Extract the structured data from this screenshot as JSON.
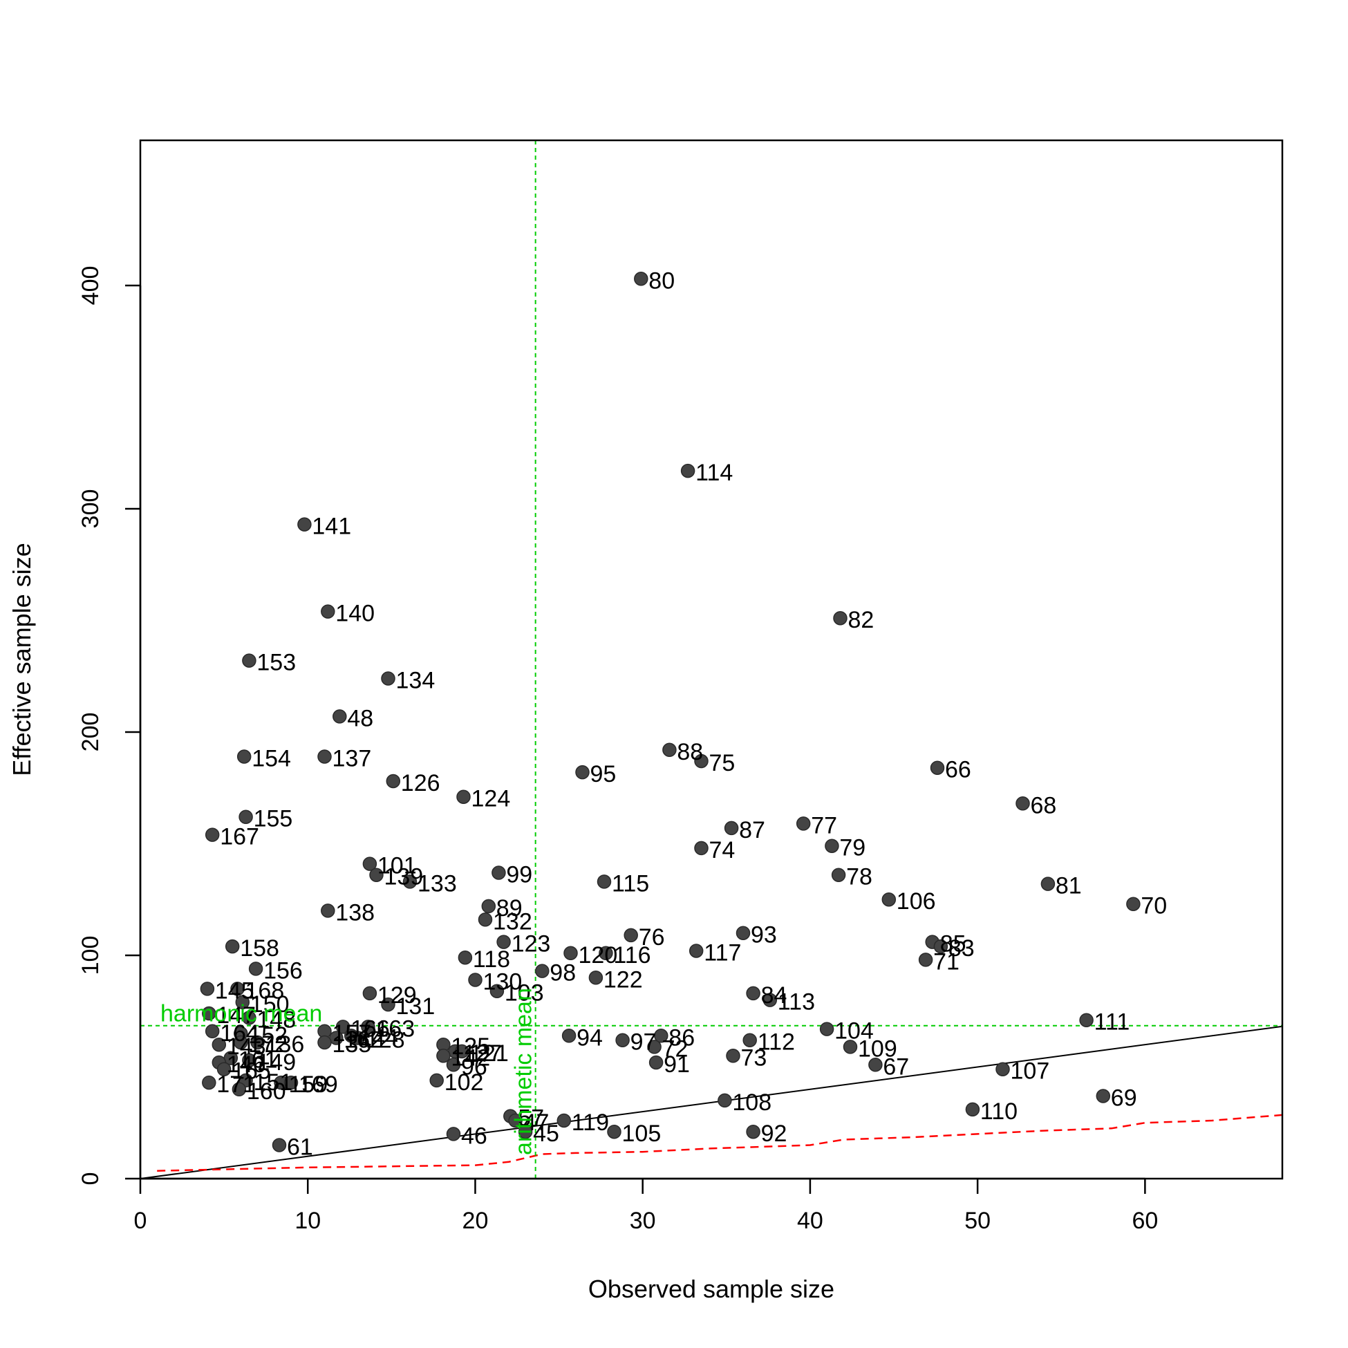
{
  "chart_data": {
    "type": "scatter",
    "xlabel": "Observed sample size",
    "ylabel": "Effective sample size",
    "xlim": [
      0,
      68.2
    ],
    "ylim": [
      0,
      465
    ],
    "x_ticks": [
      0,
      10,
      20,
      30,
      40,
      50,
      60
    ],
    "y_ticks": [
      0,
      100,
      200,
      300,
      400
    ],
    "grid": false,
    "colors": {
      "points": "#444444",
      "reference": "#00cc00",
      "identity": "#000000",
      "lower": "#ff0000"
    },
    "harmonic_mean": {
      "label": "harmonic mean",
      "y": 68.5
    },
    "arithmetic_mean": {
      "label": "arithmetic mean",
      "x": 23.6
    },
    "identity_line": {
      "x": [
        0,
        68.2
      ],
      "y": [
        0,
        68.2
      ]
    },
    "lower_bound_line": {
      "x": [
        1,
        10,
        20,
        22,
        24,
        26,
        30,
        34,
        38,
        40,
        42,
        46,
        50,
        54,
        58,
        60,
        64,
        68.2
      ],
      "y": [
        3.5,
        5,
        6,
        7.5,
        11,
        11.5,
        12,
        13.5,
        14.5,
        15,
        17.5,
        18.5,
        20,
        21.5,
        22.5,
        25,
        26,
        28.5
      ]
    },
    "points": [
      {
        "label": "80",
        "x": 29.9,
        "y": 403
      },
      {
        "label": "114",
        "x": 32.7,
        "y": 317
      },
      {
        "label": "141",
        "x": 9.8,
        "y": 293
      },
      {
        "label": "140",
        "x": 11.2,
        "y": 254
      },
      {
        "label": "82",
        "x": 41.8,
        "y": 251
      },
      {
        "label": "153",
        "x": 6.5,
        "y": 232
      },
      {
        "label": "134",
        "x": 14.8,
        "y": 224
      },
      {
        "label": "48",
        "x": 11.9,
        "y": 207
      },
      {
        "label": "88",
        "x": 31.6,
        "y": 192
      },
      {
        "label": "154",
        "x": 6.2,
        "y": 189
      },
      {
        "label": "137",
        "x": 11.0,
        "y": 189
      },
      {
        "label": "75",
        "x": 33.5,
        "y": 187
      },
      {
        "label": "66",
        "x": 47.6,
        "y": 184
      },
      {
        "label": "95",
        "x": 26.4,
        "y": 182
      },
      {
        "label": "126",
        "x": 15.1,
        "y": 178
      },
      {
        "label": "124",
        "x": 19.3,
        "y": 171
      },
      {
        "label": "68",
        "x": 52.7,
        "y": 168
      },
      {
        "label": "155",
        "x": 6.3,
        "y": 162
      },
      {
        "label": "77",
        "x": 39.6,
        "y": 159
      },
      {
        "label": "87",
        "x": 35.3,
        "y": 157
      },
      {
        "label": "167",
        "x": 4.3,
        "y": 154
      },
      {
        "label": "79",
        "x": 41.3,
        "y": 149
      },
      {
        "label": "74",
        "x": 33.5,
        "y": 148
      },
      {
        "label": "101",
        "x": 13.7,
        "y": 141
      },
      {
        "label": "99",
        "x": 21.4,
        "y": 137
      },
      {
        "label": "78",
        "x": 41.7,
        "y": 136
      },
      {
        "label": "139",
        "x": 14.1,
        "y": 136
      },
      {
        "label": "115",
        "x": 27.7,
        "y": 133
      },
      {
        "label": "133",
        "x": 16.1,
        "y": 133
      },
      {
        "label": "81",
        "x": 54.2,
        "y": 132
      },
      {
        "label": "106",
        "x": 44.7,
        "y": 125
      },
      {
        "label": "70",
        "x": 59.3,
        "y": 123
      },
      {
        "label": "89",
        "x": 20.8,
        "y": 122
      },
      {
        "label": "138",
        "x": 11.2,
        "y": 120
      },
      {
        "label": "132",
        "x": 20.6,
        "y": 116
      },
      {
        "label": "93",
        "x": 36.0,
        "y": 110
      },
      {
        "label": "76",
        "x": 29.3,
        "y": 109
      },
      {
        "label": "123",
        "x": 21.7,
        "y": 106
      },
      {
        "label": "85",
        "x": 47.3,
        "y": 106
      },
      {
        "label": "83",
        "x": 47.8,
        "y": 104
      },
      {
        "label": "158",
        "x": 5.5,
        "y": 104
      },
      {
        "label": "117",
        "x": 33.2,
        "y": 102
      },
      {
        "label": "116",
        "x": 27.8,
        "y": 101
      },
      {
        "label": "120",
        "x": 25.7,
        "y": 101
      },
      {
        "label": "118",
        "x": 19.4,
        "y": 99
      },
      {
        "label": "71",
        "x": 46.9,
        "y": 98
      },
      {
        "label": "156",
        "x": 6.9,
        "y": 94
      },
      {
        "label": "98",
        "x": 24.0,
        "y": 93
      },
      {
        "label": "122",
        "x": 27.2,
        "y": 90
      },
      {
        "label": "130",
        "x": 20.0,
        "y": 89
      },
      {
        "label": "145",
        "x": 4.0,
        "y": 85
      },
      {
        "label": "168",
        "x": 5.8,
        "y": 85
      },
      {
        "label": "103",
        "x": 21.3,
        "y": 84
      },
      {
        "label": "84",
        "x": 36.6,
        "y": 83
      },
      {
        "label": "129",
        "x": 13.7,
        "y": 83
      },
      {
        "label": "150",
        "x": 6.1,
        "y": 79
      },
      {
        "label": "113",
        "x": 37.6,
        "y": 80
      },
      {
        "label": "131",
        "x": 14.8,
        "y": 78
      },
      {
        "label": "147",
        "x": 4.1,
        "y": 74
      },
      {
        "label": "148",
        "x": 6.5,
        "y": 72
      },
      {
        "label": "111",
        "x": 56.5,
        "y": 71
      },
      {
        "label": "104",
        "x": 41.0,
        "y": 67
      },
      {
        "label": "164",
        "x": 4.3,
        "y": 66
      },
      {
        "label": "163",
        "x": 13.6,
        "y": 68
      },
      {
        "label": "166",
        "x": 12.1,
        "y": 68
      },
      {
        "label": "94",
        "x": 25.6,
        "y": 64
      },
      {
        "label": "152",
        "x": 6.0,
        "y": 65
      },
      {
        "label": "86",
        "x": 31.1,
        "y": 64
      },
      {
        "label": "157",
        "x": 11.0,
        "y": 66
      },
      {
        "label": "144",
        "x": 12.6,
        "y": 64
      },
      {
        "label": "112",
        "x": 36.4,
        "y": 62
      },
      {
        "label": "162",
        "x": 11.7,
        "y": 63
      },
      {
        "label": "97",
        "x": 28.8,
        "y": 62
      },
      {
        "label": "128",
        "x": 13.0,
        "y": 63
      },
      {
        "label": "172",
        "x": 6.0,
        "y": 61
      },
      {
        "label": "143",
        "x": 4.7,
        "y": 60
      },
      {
        "label": "136",
        "x": 7.0,
        "y": 61
      },
      {
        "label": "135",
        "x": 11.0,
        "y": 61
      },
      {
        "label": "125",
        "x": 18.1,
        "y": 60
      },
      {
        "label": "109",
        "x": 42.4,
        "y": 59
      },
      {
        "label": "127",
        "x": 18.8,
        "y": 57
      },
      {
        "label": "72",
        "x": 30.7,
        "y": 59
      },
      {
        "label": "121",
        "x": 19.2,
        "y": 57
      },
      {
        "label": "73",
        "x": 35.4,
        "y": 55
      },
      {
        "label": "142",
        "x": 18.1,
        "y": 55
      },
      {
        "label": "161",
        "x": 5.4,
        "y": 54
      },
      {
        "label": "149",
        "x": 6.5,
        "y": 53
      },
      {
        "label": "91",
        "x": 30.8,
        "y": 52
      },
      {
        "label": "67",
        "x": 43.9,
        "y": 51
      },
      {
        "label": "96",
        "x": 18.7,
        "y": 51
      },
      {
        "label": "146",
        "x": 4.7,
        "y": 52
      },
      {
        "label": "165",
        "x": 5.0,
        "y": 49
      },
      {
        "label": "107",
        "x": 51.5,
        "y": 49
      },
      {
        "label": "102",
        "x": 17.7,
        "y": 44
      },
      {
        "label": "159",
        "x": 8.4,
        "y": 43
      },
      {
        "label": "151",
        "x": 6.3,
        "y": 44
      },
      {
        "label": "171",
        "x": 4.1,
        "y": 43
      },
      {
        "label": "169",
        "x": 9.0,
        "y": 43
      },
      {
        "label": "160",
        "x": 5.9,
        "y": 40
      },
      {
        "label": "108",
        "x": 34.9,
        "y": 35
      },
      {
        "label": "69",
        "x": 57.5,
        "y": 37
      },
      {
        "label": "110",
        "x": 49.7,
        "y": 31
      },
      {
        "label": "57",
        "x": 22.1,
        "y": 28
      },
      {
        "label": "47",
        "x": 22.4,
        "y": 26
      },
      {
        "label": "119",
        "x": 25.3,
        "y": 26
      },
      {
        "label": "45",
        "x": 23.0,
        "y": 21
      },
      {
        "label": "105",
        "x": 28.3,
        "y": 21
      },
      {
        "label": "92",
        "x": 36.6,
        "y": 21
      },
      {
        "label": "46",
        "x": 18.7,
        "y": 20
      },
      {
        "label": "61",
        "x": 8.3,
        "y": 15
      }
    ]
  }
}
